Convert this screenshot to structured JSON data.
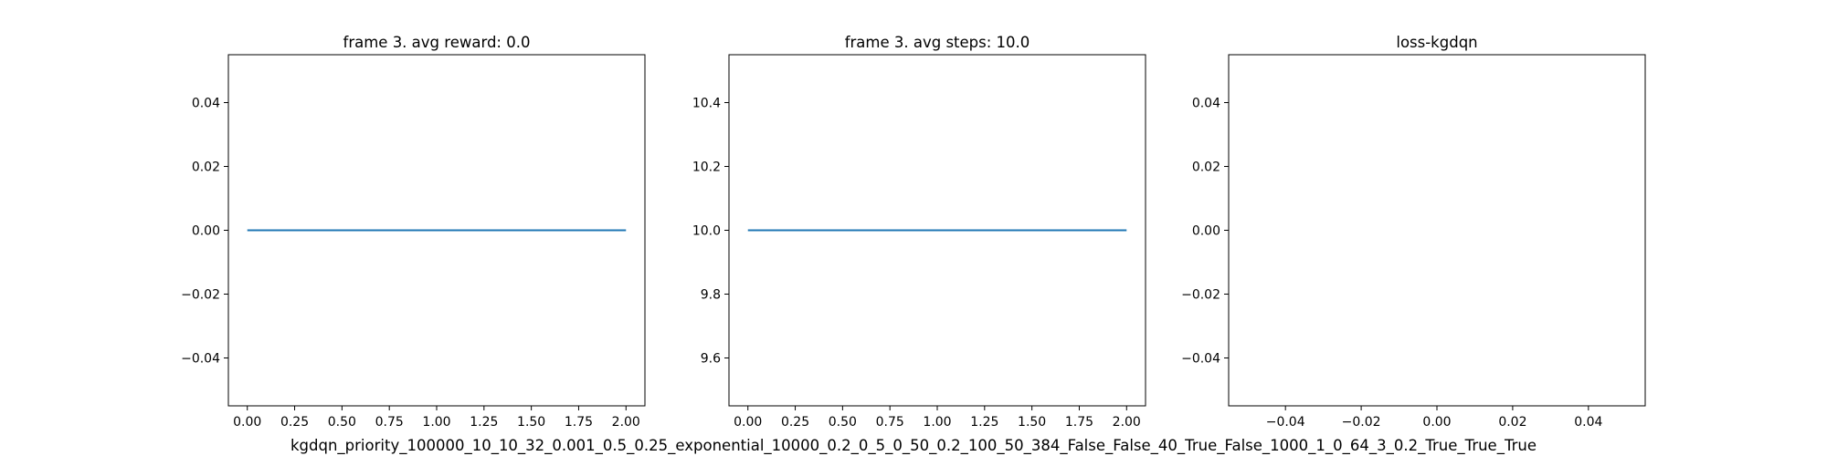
{
  "suptitle": "kgdqn_priority_100000_10_10_32_0.001_0.5_0.25_exponential_10000_0.2_0_5_0_50_0.2_100_50_384_False_False_40_True_False_1000_1_0_64_3_0.2_True_True_True",
  "chart_data": [
    {
      "type": "line",
      "title": "frame 3. avg reward: 0.0",
      "xlabel": "",
      "ylabel": "",
      "xlim": [
        -0.1,
        2.1
      ],
      "ylim": [
        -0.055,
        0.055
      ],
      "xticks": [
        0.0,
        0.25,
        0.5,
        0.75,
        1.0,
        1.25,
        1.5,
        1.75,
        2.0
      ],
      "xtick_labels": [
        "0.00",
        "0.25",
        "0.50",
        "0.75",
        "1.00",
        "1.25",
        "1.50",
        "1.75",
        "2.00"
      ],
      "yticks": [
        -0.04,
        -0.02,
        0.0,
        0.02,
        0.04
      ],
      "ytick_labels": [
        "−0.04",
        "−0.02",
        "0.00",
        "0.02",
        "0.04"
      ],
      "grid": false,
      "series": [
        {
          "x": [
            0,
            1,
            2
          ],
          "y": [
            0.0,
            0.0,
            0.0
          ],
          "color": "#1f77b4"
        }
      ]
    },
    {
      "type": "line",
      "title": "frame 3. avg steps: 10.0",
      "xlabel": "",
      "ylabel": "",
      "xlim": [
        -0.1,
        2.1
      ],
      "ylim": [
        9.45,
        10.55
      ],
      "xticks": [
        0.0,
        0.25,
        0.5,
        0.75,
        1.0,
        1.25,
        1.5,
        1.75,
        2.0
      ],
      "xtick_labels": [
        "0.00",
        "0.25",
        "0.50",
        "0.75",
        "1.00",
        "1.25",
        "1.50",
        "1.75",
        "2.00"
      ],
      "yticks": [
        9.6,
        9.8,
        10.0,
        10.2,
        10.4
      ],
      "ytick_labels": [
        "9.6",
        "9.8",
        "10.0",
        "10.2",
        "10.4"
      ],
      "grid": false,
      "series": [
        {
          "x": [
            0,
            1,
            2
          ],
          "y": [
            10.0,
            10.0,
            10.0
          ],
          "color": "#1f77b4"
        }
      ]
    },
    {
      "type": "line",
      "title": "loss-kgdqn",
      "xlabel": "",
      "ylabel": "",
      "xlim": [
        -0.055,
        0.055
      ],
      "ylim": [
        -0.055,
        0.055
      ],
      "xticks": [
        -0.04,
        -0.02,
        0.0,
        0.02,
        0.04
      ],
      "xtick_labels": [
        "−0.04",
        "−0.02",
        "0.00",
        "0.02",
        "0.04"
      ],
      "yticks": [
        -0.04,
        -0.02,
        0.0,
        0.02,
        0.04
      ],
      "ytick_labels": [
        "−0.04",
        "−0.02",
        "0.00",
        "0.02",
        "0.04"
      ],
      "grid": false,
      "series": []
    }
  ]
}
